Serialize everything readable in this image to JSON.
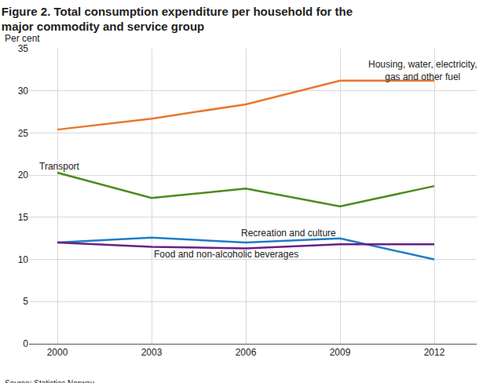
{
  "chart_data": {
    "type": "line",
    "title": "Figure 2. Total consumption expenditure per household for the major commodity and service group",
    "y_label": "Per cent",
    "source": "Source: Statistics Norway.",
    "x": [
      2000,
      2003,
      2006,
      2009,
      2012
    ],
    "xlim": [
      1999.1,
      2013.35
    ],
    "xticks": [
      2000,
      2003,
      2006,
      2009,
      2012
    ],
    "ylim": [
      0,
      35
    ],
    "yticks": [
      0,
      5,
      10,
      15,
      20,
      25,
      30,
      35
    ],
    "grid": true,
    "series": [
      {
        "name": "Housing, water, electricity, gas and other fuel",
        "color": "#e8772e",
        "values": [
          25.4,
          26.7,
          28.4,
          31.2,
          31.2
        ]
      },
      {
        "name": "Transport",
        "color": "#4e8a1c",
        "values": [
          20.3,
          17.3,
          18.4,
          16.3,
          18.7
        ]
      },
      {
        "name": "Recreation and culture",
        "color": "#1f7dc4",
        "values": [
          12.0,
          12.6,
          12.0,
          12.5,
          10.0
        ]
      },
      {
        "name": "Food and non-alcoholic beverages",
        "color": "#6b1e87",
        "values": [
          12.0,
          11.5,
          11.3,
          11.8,
          11.8
        ]
      }
    ]
  }
}
